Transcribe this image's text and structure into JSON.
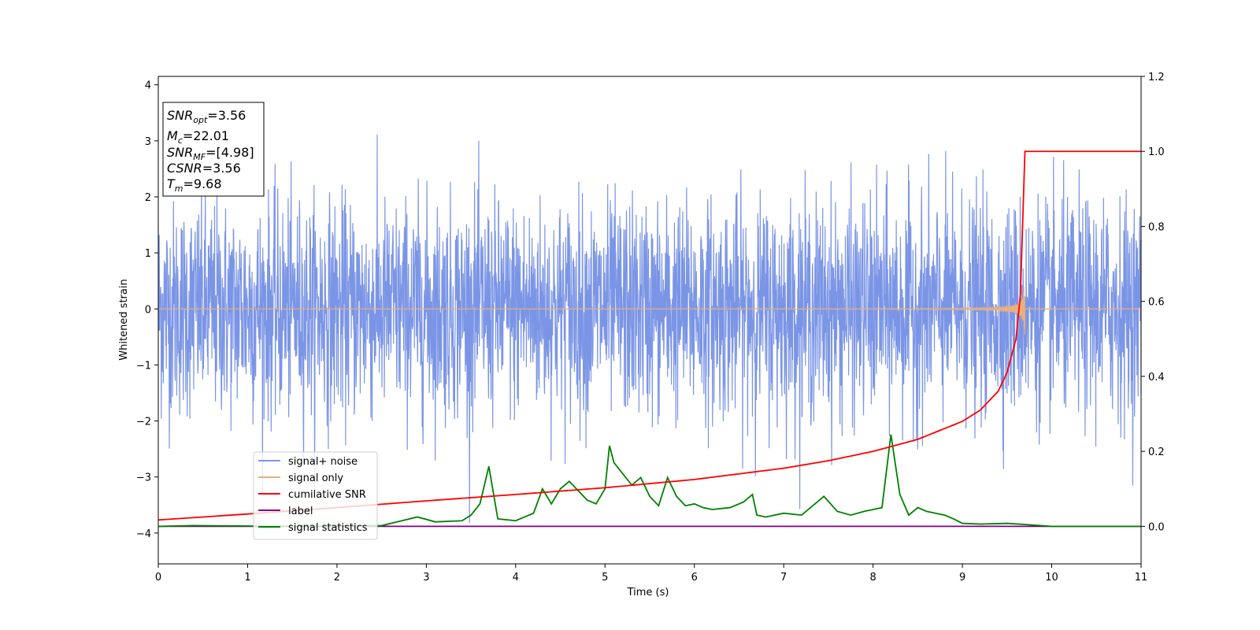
{
  "chart_data": {
    "type": "line",
    "xlabel": "Time (s)",
    "ylabel": "Whitened strain",
    "xlim": [
      0,
      11
    ],
    "ylim": [
      -4.55,
      4.15
    ],
    "y2lim": [
      -0.1,
      1.2
    ],
    "x_ticks": [
      "0",
      "1",
      "2",
      "3",
      "4",
      "5",
      "6",
      "7",
      "8",
      "9",
      "10",
      "11"
    ],
    "y_ticks": [
      "4",
      "3",
      "2",
      "1",
      "0",
      "−1",
      "−2",
      "−3",
      "−4"
    ],
    "y2_ticks": [
      "1.2",
      "1.0",
      "0.8",
      "0.6",
      "0.4",
      "0.2",
      "0.0"
    ],
    "grid": false,
    "legend_position": "lower-left",
    "info_box": {
      "snr_opt": {
        "sym": "SNR",
        "sub": "opt",
        "value": "=3.56"
      },
      "mc": {
        "sym": "M",
        "sub": "c",
        "value": "=22.01"
      },
      "snr_mf": {
        "sym": "SNR",
        "sub": "MF",
        "value": "=[4.98]"
      },
      "csnr": {
        "sym": "CSNR",
        "value": "=3.56"
      },
      "tm": {
        "sym": "T",
        "sub": "m",
        "value": "=9.68"
      }
    },
    "series": [
      {
        "name": "signal+ noise",
        "color": "#7b95e6",
        "axis": "left",
        "description_values": {
          "noise_std": 1.0,
          "peak_max": 3.7,
          "peak_min": -4.2
        }
      },
      {
        "name": "signal only",
        "color": "#e8b07d",
        "axis": "left",
        "chirp": {
          "start_amp": 0.0,
          "max_amp": 0.7,
          "merger_time": 9.68,
          "end_time": 9.7
        }
      },
      {
        "name": "cumilative SNR",
        "color": "#ff0000",
        "axis": "right",
        "points": [
          [
            0,
            0.017
          ],
          [
            1,
            0.033
          ],
          [
            2,
            0.05
          ],
          [
            3,
            0.068
          ],
          [
            4,
            0.085
          ],
          [
            5,
            0.103
          ],
          [
            6,
            0.125
          ],
          [
            7,
            0.155
          ],
          [
            7.5,
            0.175
          ],
          [
            8,
            0.2
          ],
          [
            8.5,
            0.232
          ],
          [
            9,
            0.28
          ],
          [
            9.2,
            0.31
          ],
          [
            9.4,
            0.36
          ],
          [
            9.5,
            0.41
          ],
          [
            9.6,
            0.5
          ],
          [
            9.65,
            0.62
          ],
          [
            9.68,
            0.85
          ],
          [
            9.7,
            1.0
          ],
          [
            11,
            1.0
          ]
        ]
      },
      {
        "name": "label",
        "color": "#800080",
        "axis": "right",
        "points": [
          [
            0,
            0.0
          ],
          [
            11,
            0.0
          ]
        ]
      },
      {
        "name": "signal statistics",
        "color": "#008000",
        "axis": "right",
        "points": [
          [
            0,
            0.0
          ],
          [
            0.4,
            0.002
          ],
          [
            1.5,
            0.0
          ],
          [
            2.5,
            0.002
          ],
          [
            2.9,
            0.025
          ],
          [
            3.1,
            0.012
          ],
          [
            3.4,
            0.015
          ],
          [
            3.5,
            0.03
          ],
          [
            3.6,
            0.06
          ],
          [
            3.7,
            0.16
          ],
          [
            3.8,
            0.02
          ],
          [
            4.0,
            0.015
          ],
          [
            4.2,
            0.035
          ],
          [
            4.3,
            0.1
          ],
          [
            4.4,
            0.06
          ],
          [
            4.5,
            0.1
          ],
          [
            4.6,
            0.12
          ],
          [
            4.8,
            0.07
          ],
          [
            4.9,
            0.06
          ],
          [
            5.0,
            0.1
          ],
          [
            5.05,
            0.215
          ],
          [
            5.1,
            0.17
          ],
          [
            5.3,
            0.11
          ],
          [
            5.4,
            0.13
          ],
          [
            5.5,
            0.08
          ],
          [
            5.6,
            0.055
          ],
          [
            5.7,
            0.13
          ],
          [
            5.8,
            0.08
          ],
          [
            5.9,
            0.055
          ],
          [
            6.0,
            0.06
          ],
          [
            6.1,
            0.05
          ],
          [
            6.2,
            0.045
          ],
          [
            6.4,
            0.05
          ],
          [
            6.55,
            0.065
          ],
          [
            6.65,
            0.085
          ],
          [
            6.7,
            0.03
          ],
          [
            6.8,
            0.025
          ],
          [
            7.0,
            0.035
          ],
          [
            7.2,
            0.03
          ],
          [
            7.3,
            0.05
          ],
          [
            7.45,
            0.08
          ],
          [
            7.6,
            0.04
          ],
          [
            7.75,
            0.03
          ],
          [
            7.9,
            0.04
          ],
          [
            8.0,
            0.045
          ],
          [
            8.1,
            0.05
          ],
          [
            8.2,
            0.245
          ],
          [
            8.3,
            0.085
          ],
          [
            8.4,
            0.03
          ],
          [
            8.5,
            0.05
          ],
          [
            8.6,
            0.04
          ],
          [
            8.7,
            0.035
          ],
          [
            8.8,
            0.03
          ],
          [
            8.9,
            0.02
          ],
          [
            9.0,
            0.008
          ],
          [
            9.2,
            0.006
          ],
          [
            9.5,
            0.008
          ],
          [
            9.7,
            0.005
          ],
          [
            10.0,
            0.0
          ],
          [
            11,
            0.0
          ]
        ]
      }
    ]
  }
}
